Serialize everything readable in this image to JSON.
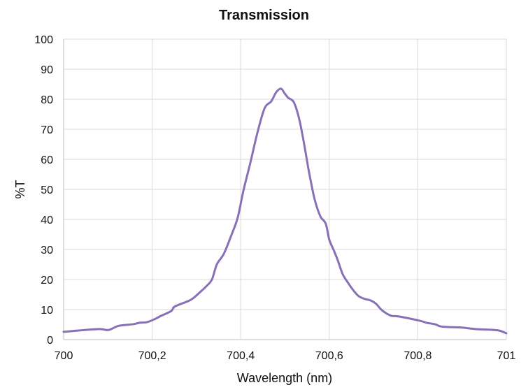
{
  "chart_data": {
    "type": "line",
    "title": "Transmission",
    "xlabel": "Wavelength (nm)",
    "ylabel": "%T",
    "xlim": [
      700,
      701
    ],
    "ylim": [
      0,
      100
    ],
    "grid": true,
    "legend": null,
    "x_ticks": [
      "700",
      "700,2",
      "700,4",
      "700,6",
      "700,8",
      "701"
    ],
    "y_ticks": [
      "0",
      "10",
      "20",
      "30",
      "40",
      "50",
      "60",
      "70",
      "80",
      "90",
      "100"
    ],
    "series": [
      {
        "name": "Transmission",
        "color": "#8670B8",
        "x": [
          700.0,
          700.077,
          700.101,
          700.125,
          700.156,
          700.172,
          700.188,
          700.204,
          700.22,
          700.243,
          700.251,
          700.281,
          700.292,
          700.312,
          700.322,
          700.335,
          700.346,
          700.362,
          700.378,
          700.393,
          700.406,
          700.422,
          700.438,
          700.454,
          700.469,
          700.48,
          700.491,
          700.499,
          700.507,
          700.52,
          700.532,
          700.543,
          700.554,
          700.567,
          700.58,
          700.592,
          700.6,
          700.61,
          700.619,
          700.63,
          700.642,
          700.655,
          700.667,
          700.681,
          700.694,
          700.706,
          700.716,
          700.728,
          700.741,
          700.757,
          700.804,
          700.82,
          700.839,
          700.851,
          700.867,
          700.899,
          700.931,
          700.962,
          700.984,
          701.0
        ],
        "values": [
          2.6,
          3.5,
          3.2,
          4.6,
          5.1,
          5.6,
          5.8,
          6.7,
          7.9,
          9.5,
          11.0,
          12.8,
          13.7,
          16.3,
          17.7,
          20.0,
          25.0,
          28.6,
          34.4,
          40.5,
          49.5,
          59.0,
          69.0,
          77.0,
          79.3,
          82.3,
          83.5,
          82.0,
          80.5,
          79.0,
          73.5,
          65.3,
          56.0,
          46.7,
          41.0,
          38.6,
          33.3,
          29.8,
          26.5,
          21.9,
          19.0,
          16.3,
          14.4,
          13.5,
          13.0,
          11.9,
          10.2,
          8.8,
          7.9,
          7.7,
          6.3,
          5.6,
          5.1,
          4.4,
          4.2,
          4.0,
          3.5,
          3.3,
          3.0,
          2.1
        ]
      }
    ]
  },
  "colors": {
    "line": "#8670B8",
    "grid": "#D9D9D9",
    "axis": "#BFBFBF",
    "text": "#111111"
  }
}
